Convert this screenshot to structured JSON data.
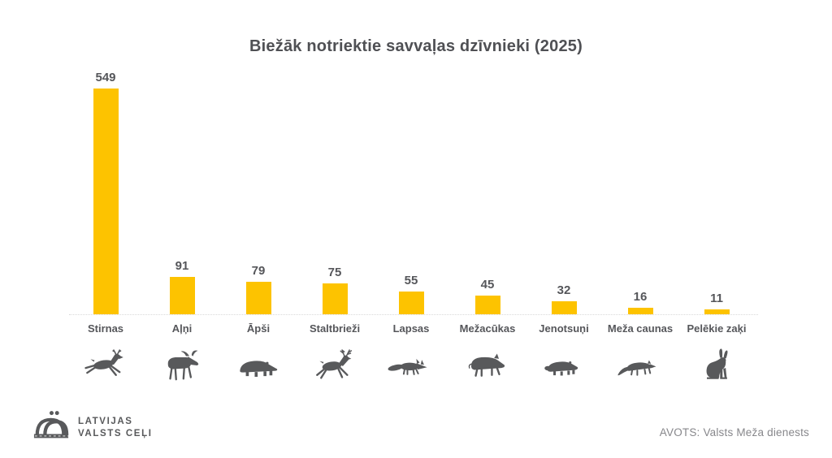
{
  "title": "Biežāk notriektie savvaļas dzīvnieki (2025)",
  "chart_data": {
    "type": "bar",
    "title": "Biežāk notriektie savvaļas dzīvnieki (2025)",
    "categories": [
      "Stirnas",
      "Aļņi",
      "Āpši",
      "Staltbrieži",
      "Lapsas",
      "Mežacūkas",
      "Jenotsuņi",
      "Meža caunas",
      "Pelēkie zaķi"
    ],
    "values": [
      549,
      91,
      79,
      75,
      55,
      45,
      32,
      16,
      11
    ],
    "icons": [
      "roe-deer",
      "moose",
      "badger",
      "red-deer",
      "fox",
      "wild-boar",
      "raccoon-dog",
      "pine-marten",
      "hare"
    ],
    "value_labels": true,
    "grid": false,
    "legend": false,
    "ylim": [
      0,
      560
    ],
    "bar_color": "#FDC300"
  },
  "footer": {
    "logo_line1": "LATVIJAS",
    "logo_line2": "VALSTS CEĻI",
    "source": "AVOTS: Valsts Meža dienests"
  },
  "colors": {
    "bar": "#FDC300",
    "text": "#55565A",
    "title_text": "#4F5054",
    "icon": "#58595B",
    "source_text": "#87878B",
    "axis_line": "#D9D9D9",
    "background": "#FFFFFF"
  }
}
